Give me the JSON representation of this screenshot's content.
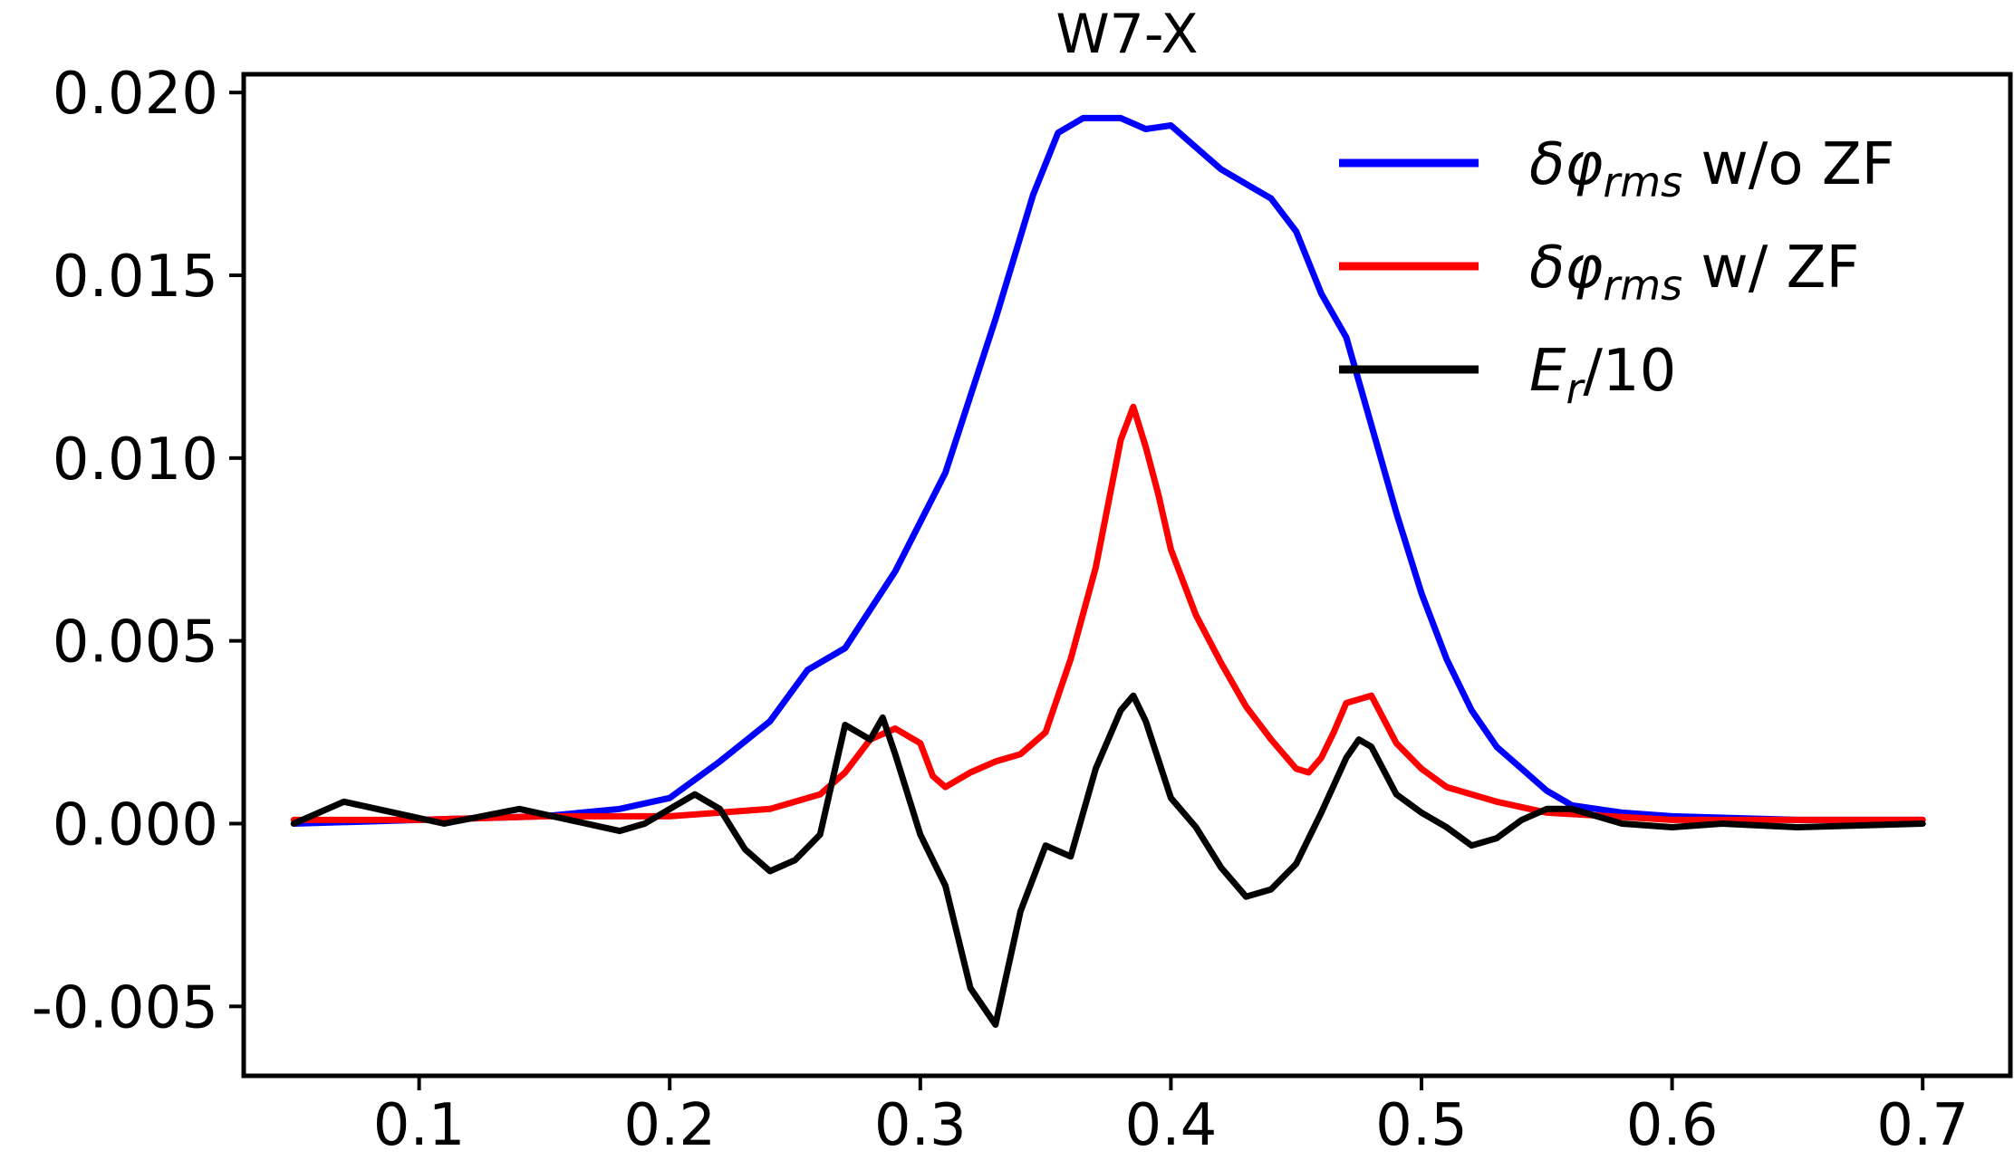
{
  "chart_data": {
    "type": "line",
    "title": "W7-X",
    "xlabel": "",
    "ylabel": "",
    "xlim": [
      0.03,
      0.735
    ],
    "ylim": [
      -0.0069,
      0.0205
    ],
    "x_ticks": [
      "0.1",
      "0.2",
      "0.3",
      "0.4",
      "0.5",
      "0.6",
      "0.7"
    ],
    "x_tick_values": [
      0.1,
      0.2,
      0.3,
      0.4,
      0.5,
      0.6,
      0.7
    ],
    "y_ticks": [
      "0.020",
      "0.015",
      "0.010",
      "0.005",
      "0.000",
      "-0.005"
    ],
    "y_tick_values": [
      0.02,
      0.015,
      0.01,
      0.005,
      0.0,
      -0.005
    ],
    "grid": false,
    "legend_position": "top-right",
    "series": [
      {
        "name": "δφ_rms w/o ZF",
        "legend_main": "δφ",
        "legend_sub": "rms",
        "legend_suffix": " w/o ZF",
        "color": "#0000ff",
        "x": [
          0.05,
          0.1,
          0.15,
          0.18,
          0.2,
          0.22,
          0.24,
          0.255,
          0.27,
          0.29,
          0.31,
          0.33,
          0.345,
          0.355,
          0.365,
          0.38,
          0.39,
          0.4,
          0.41,
          0.42,
          0.43,
          0.44,
          0.45,
          0.46,
          0.47,
          0.48,
          0.49,
          0.5,
          0.51,
          0.52,
          0.53,
          0.54,
          0.55,
          0.56,
          0.58,
          0.6,
          0.65,
          0.7
        ],
        "y": [
          0.0,
          0.0001,
          0.0002,
          0.0004,
          0.0007,
          0.0017,
          0.0028,
          0.0042,
          0.0048,
          0.0069,
          0.0096,
          0.0138,
          0.0172,
          0.0189,
          0.0193,
          0.0193,
          0.019,
          0.0191,
          0.0185,
          0.0179,
          0.0175,
          0.0171,
          0.0162,
          0.0145,
          0.0133,
          0.0109,
          0.0085,
          0.0063,
          0.0045,
          0.0031,
          0.0021,
          0.0015,
          0.0009,
          0.0005,
          0.0003,
          0.0002,
          0.0001,
          0.0001
        ]
      },
      {
        "name": "δφ_rms w/ ZF",
        "legend_main": "δφ",
        "legend_sub": "rms",
        "legend_suffix": " w/ ZF",
        "color": "#ff0000",
        "x": [
          0.05,
          0.1,
          0.15,
          0.2,
          0.24,
          0.26,
          0.27,
          0.28,
          0.29,
          0.3,
          0.305,
          0.31,
          0.32,
          0.33,
          0.34,
          0.35,
          0.36,
          0.37,
          0.38,
          0.385,
          0.39,
          0.395,
          0.4,
          0.41,
          0.42,
          0.43,
          0.44,
          0.45,
          0.455,
          0.46,
          0.465,
          0.47,
          0.48,
          0.49,
          0.5,
          0.51,
          0.53,
          0.55,
          0.6,
          0.7
        ],
        "y": [
          0.0001,
          0.0001,
          0.0002,
          0.0002,
          0.0004,
          0.0008,
          0.0014,
          0.0023,
          0.0026,
          0.0022,
          0.0013,
          0.001,
          0.0014,
          0.0017,
          0.0019,
          0.0025,
          0.0045,
          0.007,
          0.0105,
          0.0114,
          0.0103,
          0.009,
          0.0075,
          0.0057,
          0.0044,
          0.0032,
          0.0023,
          0.0015,
          0.0014,
          0.0018,
          0.0025,
          0.0033,
          0.0035,
          0.0022,
          0.0015,
          0.001,
          0.0006,
          0.0003,
          0.0001,
          0.0001
        ]
      },
      {
        "name": "E_r/10",
        "legend_main": "E",
        "legend_sub": "r",
        "legend_suffix": "/10",
        "color": "#000000",
        "x": [
          0.05,
          0.07,
          0.09,
          0.11,
          0.14,
          0.16,
          0.18,
          0.19,
          0.21,
          0.22,
          0.23,
          0.24,
          0.25,
          0.26,
          0.27,
          0.28,
          0.285,
          0.29,
          0.3,
          0.31,
          0.32,
          0.33,
          0.34,
          0.35,
          0.36,
          0.37,
          0.38,
          0.385,
          0.39,
          0.4,
          0.41,
          0.42,
          0.43,
          0.44,
          0.45,
          0.46,
          0.47,
          0.475,
          0.48,
          0.49,
          0.5,
          0.51,
          0.52,
          0.53,
          0.54,
          0.55,
          0.56,
          0.57,
          0.58,
          0.6,
          0.62,
          0.65,
          0.7
        ],
        "y": [
          0.0,
          0.0006,
          0.0003,
          0.0,
          0.0004,
          0.0001,
          -0.0002,
          0.0,
          0.0008,
          0.0004,
          -0.0007,
          -0.0013,
          -0.001,
          -0.0003,
          0.0027,
          0.0023,
          0.0029,
          0.0019,
          -0.0003,
          -0.0017,
          -0.0045,
          -0.0055,
          -0.0024,
          -0.0006,
          -0.0009,
          0.0015,
          0.0031,
          0.0035,
          0.0028,
          0.0007,
          -0.0001,
          -0.0012,
          -0.002,
          -0.0018,
          -0.0011,
          0.0003,
          0.0018,
          0.0023,
          0.0021,
          0.0008,
          0.0003,
          -0.0001,
          -0.0006,
          -0.0004,
          0.0001,
          0.0004,
          0.0004,
          0.0002,
          0.0,
          -0.0001,
          0.0,
          -0.0001,
          0.0
        ]
      }
    ]
  }
}
